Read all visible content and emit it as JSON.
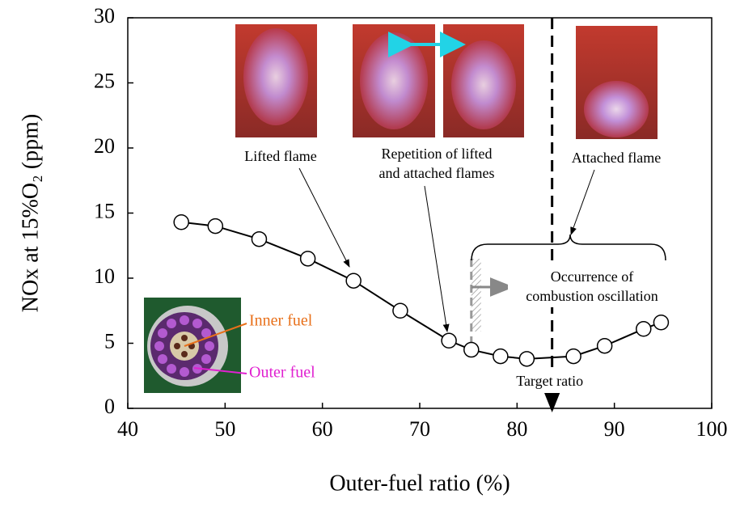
{
  "chart_data": {
    "type": "line",
    "x_label": "Outer-fuel ratio (%)",
    "y_label": "NOx at 15%O₂ (ppm)",
    "xlim": [
      40,
      100
    ],
    "xticks": [
      40,
      50,
      60,
      70,
      80,
      90,
      100
    ],
    "ylim": [
      0,
      30
    ],
    "yticks": [
      0,
      5,
      10,
      15,
      20,
      25,
      30
    ],
    "series": [
      {
        "color": "#000000",
        "x": [
          45.5,
          49,
          53.5,
          58.5,
          63.2,
          68,
          73,
          75.3,
          78.3,
          81,
          85.8,
          89,
          93,
          94.8
        ],
        "values": [
          14.3,
          14,
          13,
          11.5,
          9.8,
          7.5,
          5.2,
          4.5,
          4.0,
          3.8,
          4.0,
          4.8,
          6.1,
          6.6
        ]
      }
    ],
    "target_ratio": {
      "value": 83.6,
      "label": "Target ratio"
    },
    "oscillation_onset": 75.3,
    "annotations": {
      "lifted": "Lifted flame",
      "repetition": [
        "Repetition of lifted",
        "and attached flames"
      ],
      "attached": "Attached flame",
      "oscillation": [
        "Occurrence of",
        "combustion oscillation"
      ],
      "inner_fuel": "Inner fuel",
      "outer_fuel": "Outer fuel"
    }
  }
}
